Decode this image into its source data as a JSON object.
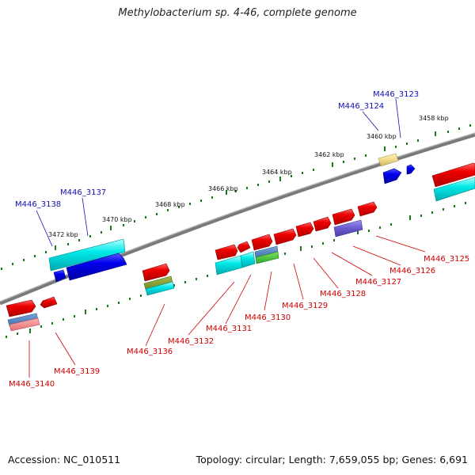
{
  "title": "Methylobacterium sp. 4-46, complete genome",
  "footer": {
    "accession": "Accession: NC_010511",
    "summary": "Topology: circular; Length: 7,659,055 bp; Genes: 6,691"
  },
  "scale_labels": [
    "3458 kbp",
    "3460 kbp",
    "3462 kbp",
    "3464 kbp",
    "3466 kbp",
    "3468 kbp",
    "3470 kbp",
    "3472 kbp"
  ],
  "genes_top": [
    "M446_3123",
    "M446_3124",
    "M446_3137",
    "M446_3138"
  ],
  "genes_bottom": [
    "M446_3125",
    "M446_3126",
    "M446_3127",
    "M446_3128",
    "M446_3129",
    "M446_3130",
    "M446_3131",
    "M446_3132",
    "M446_3136",
    "M446_3139",
    "M446_3140"
  ],
  "colors": {
    "backbone": "#7a7a7a",
    "ticks": "#1a7a1a",
    "red_gene": "#e00000",
    "blue_gene": "#0000e0",
    "cyan_gene": "#00d8d8",
    "purple_gene": "#6a5acd",
    "label_red": "#d00000",
    "label_blue": "#1010b0"
  }
}
